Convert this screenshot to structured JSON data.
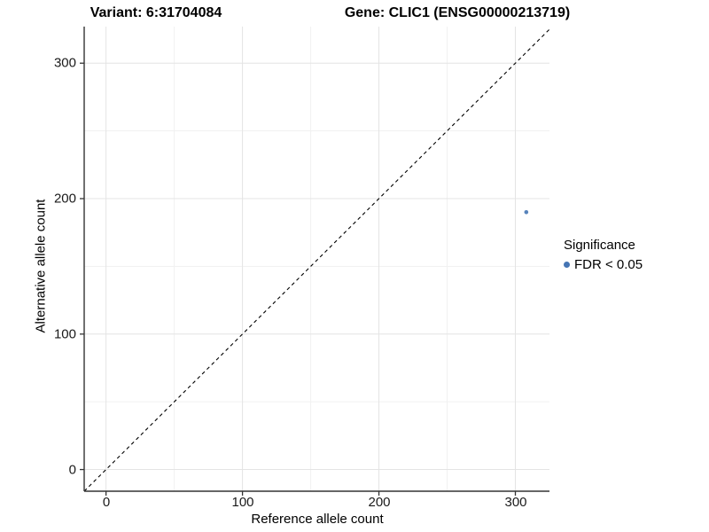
{
  "titles": {
    "variant": "Variant: 6:31704084",
    "gene": "Gene: CLIC1 (ENSG00000213719)"
  },
  "axes": {
    "x_label": "Reference allele count",
    "y_label": "Alternative allele count",
    "x_tick_labels": [
      "0",
      "100",
      "200",
      "300"
    ],
    "y_tick_labels": [
      "0",
      "100",
      "200",
      "300"
    ]
  },
  "legend": {
    "title": "Significance",
    "items": [
      {
        "label": "FDR < 0.05",
        "color": "#4575b4"
      }
    ]
  },
  "colors": {
    "point": "#4575b4",
    "axis_line": "#343434",
    "tick_mark": "#343434",
    "grid_major": "#e4e4e4",
    "grid_minor": "#f1f1f1",
    "identity_line": "#000000",
    "background": "#ffffff"
  },
  "chart_data": {
    "type": "scatter",
    "title": "Variant: 6:31704084",
    "gene_title": "Gene: CLIC1 (ENSG00000213719)",
    "xlabel": "Reference allele count",
    "ylabel": "Alternative allele count",
    "xlim": [
      -16,
      325
    ],
    "ylim": [
      -16,
      327
    ],
    "x_ticks": [
      0,
      100,
      200,
      300
    ],
    "y_ticks": [
      0,
      100,
      200,
      300
    ],
    "x_minor_gridlines": [
      50,
      150,
      250
    ],
    "y_minor_gridlines": [
      50,
      150,
      250
    ],
    "grid": "major+minor",
    "legend_position": "right",
    "identity_line": {
      "style": "dashed",
      "slope": 1,
      "intercept": 0
    },
    "series": [
      {
        "name": "FDR < 0.05",
        "color": "#4575b4",
        "points": [
          {
            "x": 308,
            "y": 190
          }
        ]
      }
    ]
  }
}
